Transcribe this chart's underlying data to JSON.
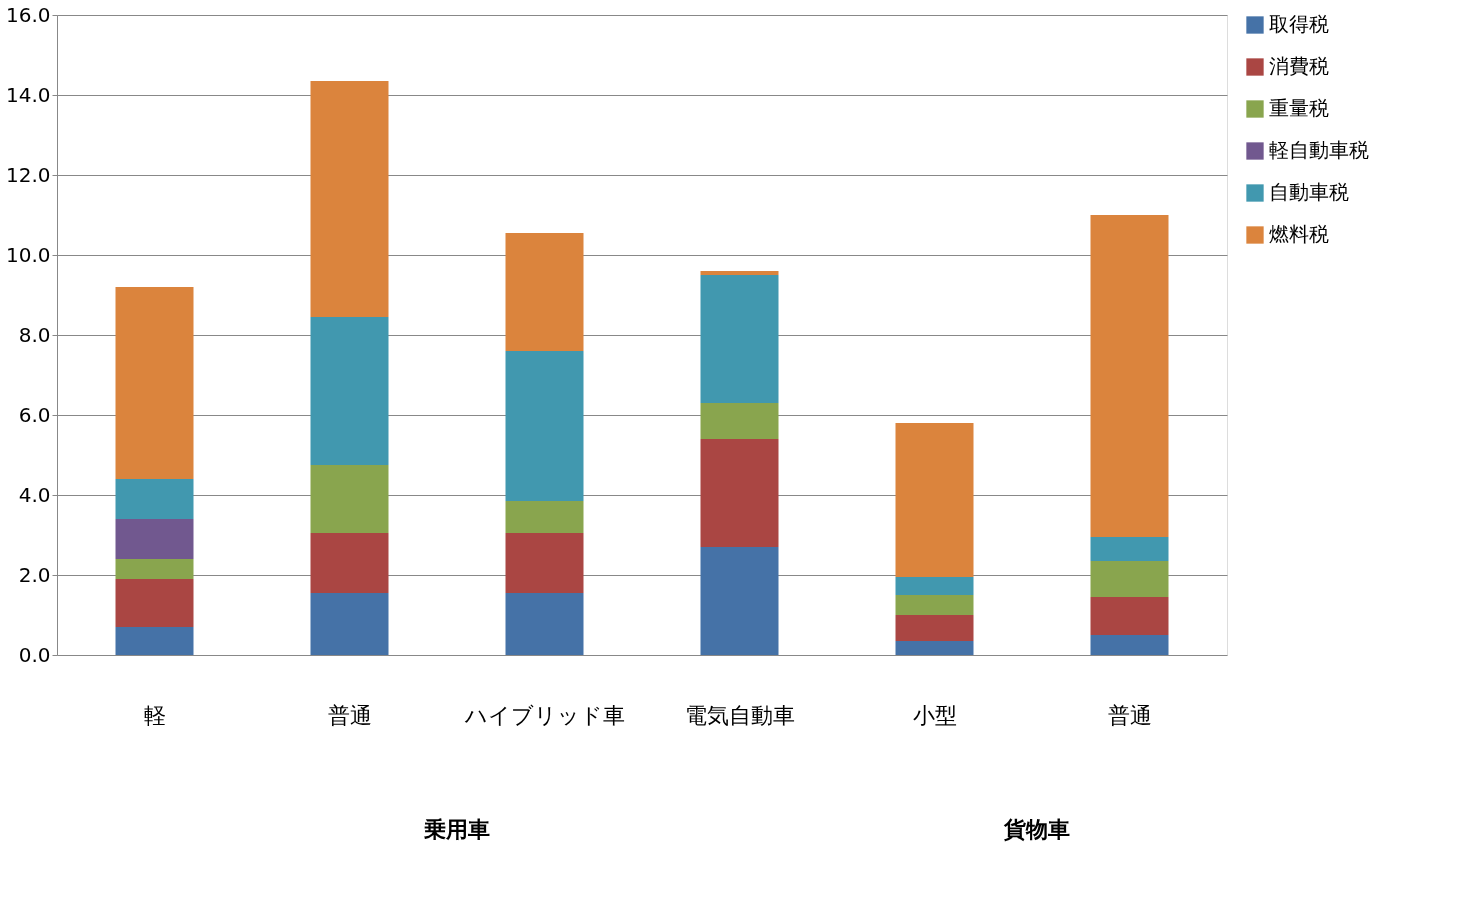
{
  "chart_data": {
    "type": "bar",
    "stacked": true,
    "categories": [
      "軽",
      "普通",
      "ハイブリッド車",
      "電気自動車",
      "小型",
      "普通"
    ],
    "series": [
      {
        "name": "取得税",
        "color": "#4572a7",
        "values": [
          0.7,
          1.55,
          1.55,
          2.7,
          0.35,
          0.5
        ]
      },
      {
        "name": "消費税",
        "color": "#aa4643",
        "values": [
          1.2,
          1.5,
          1.5,
          2.7,
          0.65,
          0.95
        ]
      },
      {
        "name": "重量税",
        "color": "#89a54e",
        "values": [
          0.5,
          1.7,
          0.8,
          0.9,
          0.5,
          0.9
        ]
      },
      {
        "name": "軽自動車税",
        "color": "#71588f",
        "values": [
          1.0,
          null,
          null,
          null,
          null,
          null
        ]
      },
      {
        "name": "自動車税",
        "color": "#4198af",
        "values": [
          1.0,
          3.7,
          3.75,
          3.2,
          0.45,
          0.6
        ]
      },
      {
        "name": "燃料税",
        "color": "#db843d",
        "values": [
          4.8,
          5.9,
          2.95,
          0.1,
          3.85,
          8.05
        ]
      }
    ],
    "ylim": [
      0,
      16
    ],
    "yticks": [
      {
        "value": 0,
        "label": "0.0"
      },
      {
        "value": 2,
        "label": "2.0"
      },
      {
        "value": 4,
        "label": "4.0"
      },
      {
        "value": 6,
        "label": "6.0"
      },
      {
        "value": 8,
        "label": "8.0"
      },
      {
        "value": 10,
        "label": "10.0"
      },
      {
        "value": 12,
        "label": "12.0"
      },
      {
        "value": 14,
        "label": "14.0"
      },
      {
        "value": 16,
        "label": "16.0"
      }
    ],
    "annotations": [
      "乗用車",
      "貨物車"
    ],
    "grid": "y",
    "legend": "right"
  }
}
